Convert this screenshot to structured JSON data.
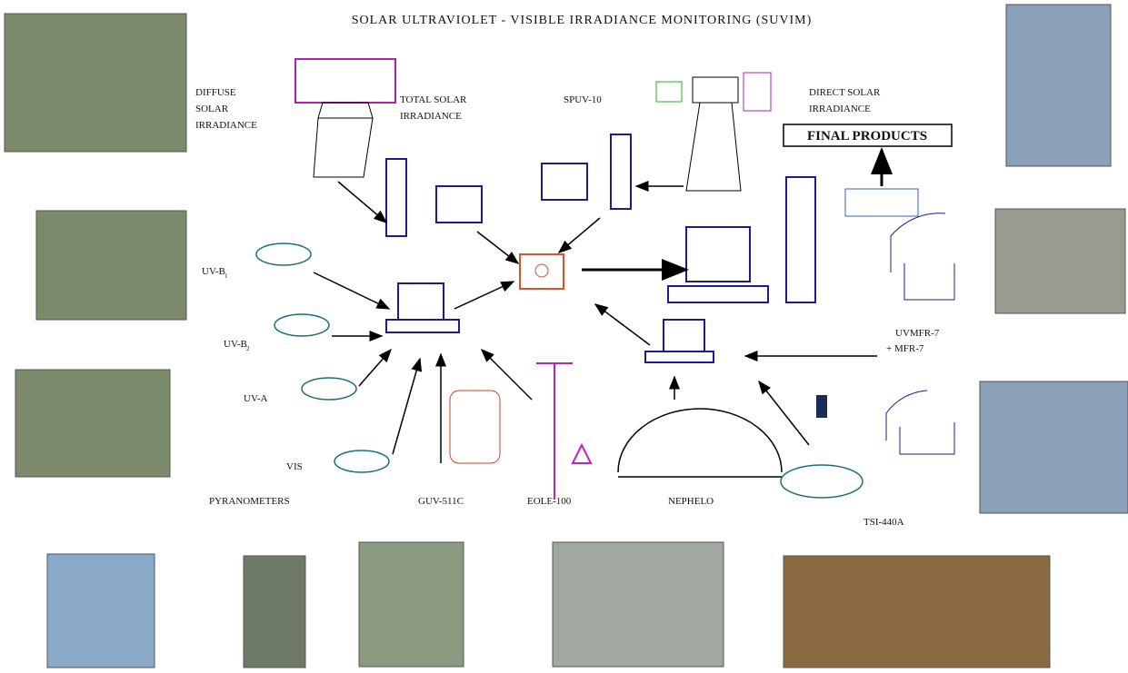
{
  "title": "SOLAR ULTRAVIOLET - VISIBLE IRRADIANCE MONITORING (SUVIM)",
  "labels": [
    {
      "lines": [
        "DIFFUSE",
        "SOLAR",
        "IRRADIANCE"
      ]
    },
    {
      "lines": [
        "TOTAL SOLAR",
        "IRRADIANCE"
      ]
    },
    {
      "lines": [
        "SPUV-10"
      ]
    },
    {
      "lines": [
        "DIRECT SOLAR",
        "IRRADIANCE"
      ]
    },
    {
      "lines": [
        "UV-B",
        "1"
      ]
    },
    {
      "lines": [
        "UV-B",
        "2"
      ]
    },
    {
      "lines": [
        "UV-A"
      ]
    },
    {
      "lines": [
        "VIS"
      ]
    },
    {
      "lines": [
        "PYRANOMETERS"
      ]
    },
    {
      "lines": [
        "GUV-511C"
      ]
    },
    {
      "lines": [
        "EOLE-100"
      ]
    },
    {
      "lines": [
        "NEPHELO"
      ]
    },
    {
      "lines": [
        "TSI-440A"
      ]
    },
    {
      "lines": [
        "UVMFR-7",
        "+ MFR-7"
      ]
    }
  ],
  "final_products": "FINAL PRODUCTS"
}
